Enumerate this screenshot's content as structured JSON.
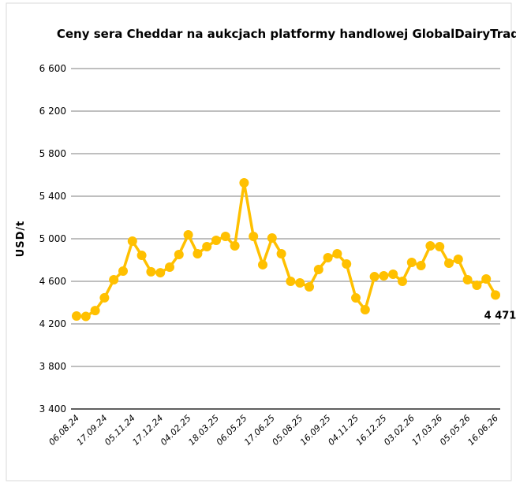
{
  "chart_data": {
    "type": "line",
    "title": "Ceny sera Cheddar na aukcjach platformy handlowej GlobalDairyTrade",
    "y_label": "USD/t",
    "categories": [
      "06.08.24",
      null,
      null,
      "17.09.24",
      null,
      null,
      "05.11.24",
      null,
      null,
      "17.12.24",
      null,
      null,
      "04.02.25",
      null,
      null,
      "18.03.25",
      null,
      null,
      "06.05.25",
      null,
      null,
      "17.06.25",
      null,
      null,
      "05.08.25",
      null,
      null,
      "16.09.25",
      null,
      null,
      "04.11.25",
      null,
      null,
      "16.12.25",
      null,
      null,
      "03.02.26",
      null,
      null,
      "17.03.26",
      null,
      null,
      "05.05.26",
      null,
      null,
      "16.06.26"
    ],
    "series": [
      {
        "name": "Cheddar",
        "color": "#ffc000",
        "values": [
          4274,
          4270,
          4325,
          4445,
          4615,
          4696,
          4978,
          4844,
          4690,
          4681,
          4733,
          4852,
          5037,
          4859,
          4926,
          4985,
          5022,
          4933,
          5526,
          5022,
          4756,
          5007,
          4859,
          4600,
          4585,
          4548,
          4711,
          4822,
          4859,
          4763,
          4444,
          4333,
          4644,
          4652,
          4667,
          4600,
          4778,
          4748,
          4933,
          4926,
          4770,
          4807,
          4615,
          4563,
          4622,
          4471
        ],
        "value_labels": [
          null,
          null,
          null,
          null,
          null,
          null,
          null,
          null,
          null,
          null,
          null,
          null,
          null,
          null,
          null,
          null,
          null,
          null,
          null,
          null,
          null,
          null,
          null,
          null,
          null,
          null,
          null,
          null,
          null,
          null,
          null,
          null,
          null,
          null,
          null,
          null,
          null,
          null,
          null,
          null,
          null,
          null,
          null,
          null,
          null,
          "4 471"
        ]
      }
    ],
    "ylim": [
      3400,
      6600
    ],
    "yticks": [
      {
        "value": 3400,
        "label": "3 400"
      },
      {
        "value": 3800,
        "label": "3 800"
      },
      {
        "value": 4200,
        "label": "4 200"
      },
      {
        "value": 4600,
        "label": "4 600"
      },
      {
        "value": 5000,
        "label": "5 000"
      },
      {
        "value": 5400,
        "label": "5 400"
      },
      {
        "value": 5800,
        "label": "5 800"
      },
      {
        "value": 6200,
        "label": "6 200"
      },
      {
        "value": 6600,
        "label": "6 600"
      }
    ],
    "grid": true
  }
}
